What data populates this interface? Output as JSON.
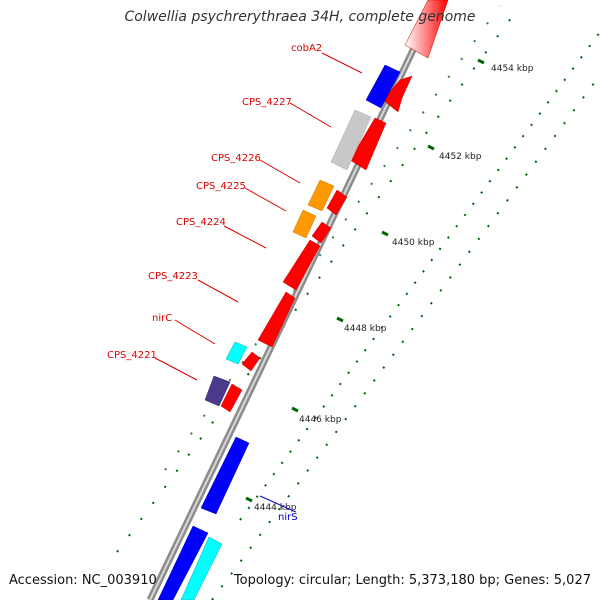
{
  "map": {
    "title": "Colwellia psychrerythraea 34H, complete genome",
    "accession": "Accession: NC_003910",
    "summary": "Topology: circular; Length: 5,373,180 bp; Genes: 5,027",
    "colors": {
      "backbone": "#9a9a9a",
      "forward": "#ff0000",
      "reverse_blue": "#0000ff",
      "cyan": "#00ffff",
      "orange": "#ff9900",
      "grey": "#c8c8c8",
      "purple": "#4b3a8c",
      "tick": "#006600",
      "label_red": "#dd0000",
      "label_blue": "#0000cc"
    },
    "scale_labels": [
      "4444 kbp",
      "4446 kbp",
      "4448 kbp",
      "4450 kbp",
      "4452 kbp",
      "4454 kbp"
    ],
    "gene_labels": [
      "cobA2",
      "CPS_4227",
      "CPS_4226",
      "CPS_4225",
      "CPS_4224",
      "CPS_4223",
      "nirC",
      "CPS_4221",
      "nirS"
    ]
  }
}
